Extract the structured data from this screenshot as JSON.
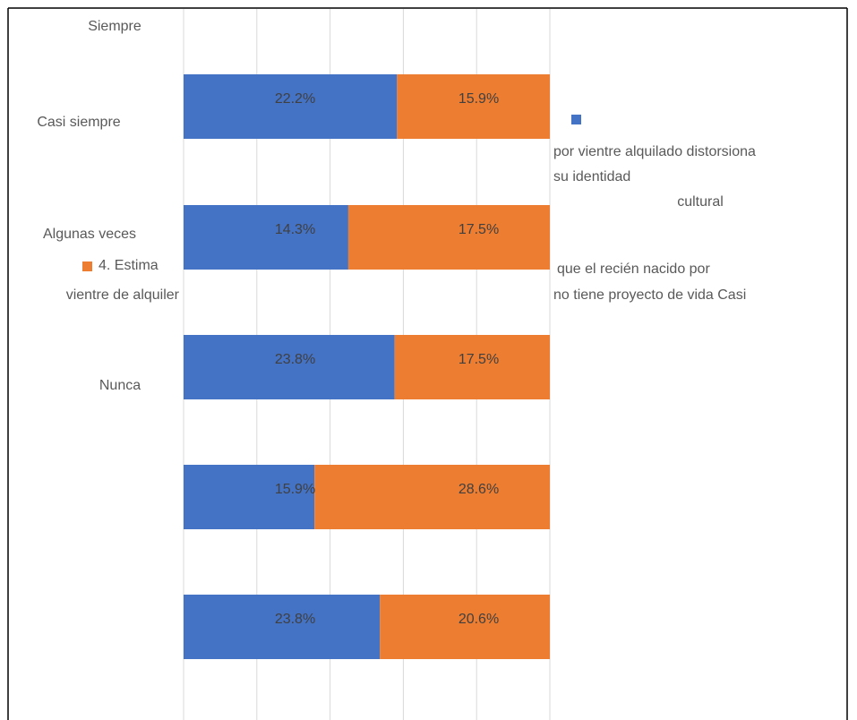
{
  "chart_data": {
    "type": "stacked-bar-100",
    "orientation": "horizontal",
    "categories": [
      "Siempre",
      "Casi siempre",
      "Algunas veces",
      "Nunca",
      null
    ],
    "series": [
      {
        "name": "por vientre alquilado distorsiona su identidad cultural",
        "color": "#4472c4",
        "values": [
          22.2,
          14.3,
          23.8,
          15.9,
          23.8
        ],
        "value_labels": [
          "22.2%",
          "14.3%",
          "23.8%",
          "15.9%",
          "23.8%"
        ]
      },
      {
        "name": "4. Estima que el recién nacido por vientre de alquiler no tiene proyecto de vida Casi nunca",
        "color": "#ed7d31",
        "values": [
          15.9,
          17.5,
          17.5,
          28.6,
          20.6
        ],
        "value_labels": [
          "15.9%",
          "17.5%",
          "17.5%",
          "28.6%",
          "20.6%"
        ]
      }
    ],
    "xlim": [
      0,
      100
    ],
    "xticks": [
      0,
      20,
      40,
      60,
      80,
      100
    ],
    "tick_labels": false,
    "grid": true
  }
}
